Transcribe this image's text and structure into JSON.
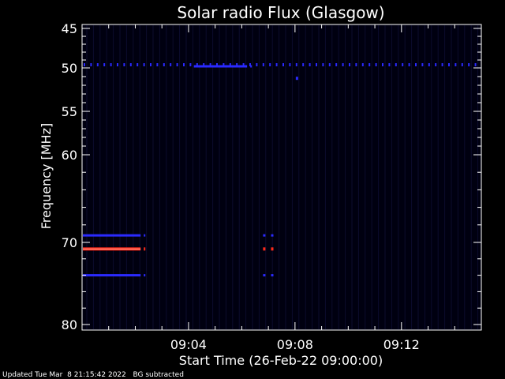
{
  "chart_data": {
    "type": "heatmap",
    "title": "Solar radio Flux (Glasgow)",
    "xlabel": "Start Time (26-Feb-22 09:00:00)",
    "ylabel": "Frequency [MHz]",
    "x_range_minutes": [
      "09:00",
      "09:15"
    ],
    "x_tick_labels": [
      "09:04",
      "09:08",
      "09:12"
    ],
    "x_tick_values": [
      "09:04",
      "09:08",
      "09:12"
    ],
    "y_ticks": [
      45,
      50,
      55,
      60,
      70,
      80
    ],
    "y_scale": "nonlinear (reciprocal-like)",
    "background": "subtracted",
    "colormap": [
      "#000010",
      "#1a1aa0",
      "#2a2aff",
      "#ff2a1a"
    ],
    "features": [
      {
        "freq_mhz": 49.6,
        "start": "09:00",
        "end": "09:15",
        "intensity": "medium",
        "color": "#2a2aff",
        "style": "dashed"
      },
      {
        "freq_mhz": 49.8,
        "start": "09:04.2",
        "end": "09:06.2",
        "intensity": "medium",
        "color": "#2a2aff",
        "style": "solid"
      },
      {
        "freq_mhz": 69.2,
        "start": "09:00",
        "end": "09:02.2",
        "intensity": "medium",
        "color": "#2a2aff",
        "style": "solid"
      },
      {
        "freq_mhz": 70.8,
        "start": "09:00",
        "end": "09:02.2",
        "intensity": "high",
        "color": "#ff2a1a",
        "style": "solid"
      },
      {
        "freq_mhz": 74.0,
        "start": "09:00",
        "end": "09:02.2",
        "intensity": "medium",
        "color": "#2a2aff",
        "style": "solid"
      },
      {
        "freq_mhz": 69.2,
        "start": "09:06.8",
        "end": "09:07.1",
        "intensity": "medium",
        "color": "#2a2aff",
        "style": "dots"
      },
      {
        "freq_mhz": 70.8,
        "start": "09:06.8",
        "end": "09:07.1",
        "intensity": "high",
        "color": "#ff2a1a",
        "style": "dots"
      },
      {
        "freq_mhz": 74.0,
        "start": "09:06.8",
        "end": "09:07.1",
        "intensity": "medium",
        "color": "#2a2aff",
        "style": "dots"
      }
    ]
  },
  "footer": {
    "updated": "Updated Tue Mar  8 21:15:42 2022",
    "bg_note": "BG subtracted"
  }
}
